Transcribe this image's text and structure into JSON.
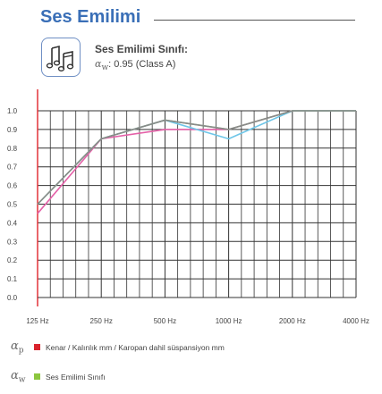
{
  "header": {
    "title": "Ses Emilimi"
  },
  "info": {
    "icon": "music-notes-icon",
    "class_title": "Ses Emilimi Sınıfı:",
    "alpha_symbol": "α",
    "alpha_sub": "w",
    "class_value": ": 0.95 (Class A)"
  },
  "colors": {
    "accent": "#3a6fb7",
    "axis_red": "#e0242c",
    "grid": "#333333",
    "series_pink": "#e461a8",
    "series_blue": "#6fc6e8",
    "series_green": "#7cc97a",
    "series_gray": "#8a8a8a",
    "legend_red": "#d9232d",
    "legend_green": "#8cc63f"
  },
  "chart_data": {
    "type": "line",
    "categories": [
      "125 Hz",
      "250 Hz",
      "500 Hz",
      "1000 Hz",
      "2000 Hz",
      "4000 Hz"
    ],
    "y_ticks": [
      "0.0",
      "0.1",
      "0.2",
      "0.3",
      "0.4",
      "0.5",
      "0.6",
      "0.7",
      "0.8",
      "0.9",
      "1.0"
    ],
    "ylim": [
      0,
      1.0
    ],
    "grid": true,
    "title": "",
    "xlabel": "",
    "ylabel": "",
    "series": [
      {
        "color": "#e461a8",
        "values": [
          0.45,
          0.85,
          0.9,
          0.9,
          1.0,
          1.0
        ]
      },
      {
        "color": "#6fc6e8",
        "values": [
          0.5,
          0.85,
          0.95,
          0.85,
          1.0,
          1.0
        ]
      },
      {
        "color": "#7cc97a",
        "values": [
          0.5,
          0.85,
          0.95,
          0.9,
          1.0,
          1.0
        ]
      },
      {
        "color": "#8a8a8a",
        "values": [
          0.5,
          0.85,
          0.95,
          0.9,
          1.0,
          1.0
        ]
      }
    ]
  },
  "legend": {
    "items": [
      {
        "alpha_symbol": "α",
        "alpha_sub": "p",
        "color": "#d9232d",
        "label": "Kenar / Kalınlık mm / Karopan dahil süspansiyon mm"
      },
      {
        "alpha_symbol": "α",
        "alpha_sub": "w",
        "color": "#8cc63f",
        "label": "Ses Emilimi Sınıfı"
      }
    ]
  }
}
